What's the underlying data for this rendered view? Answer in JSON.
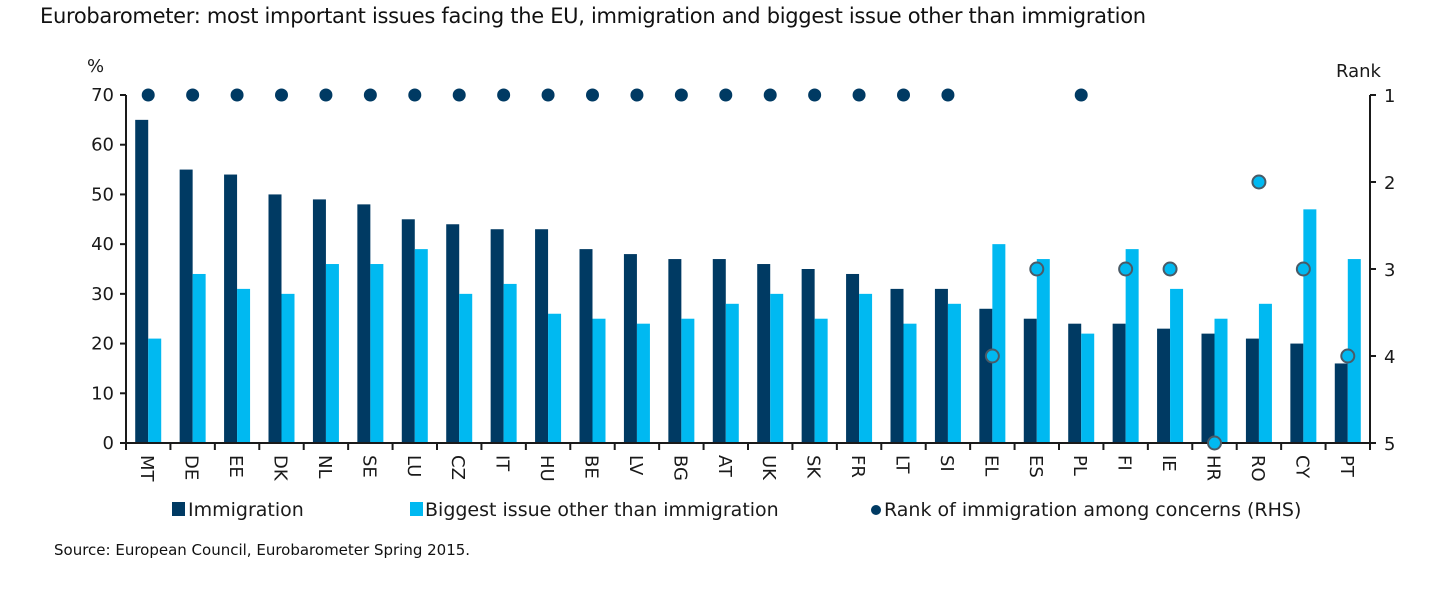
{
  "title": "Eurobarometer: most important issues facing the EU, immigration and biggest issue other than immigration",
  "source": "Source: European Council, Eurobarometer Spring 2015.",
  "colors": {
    "immigration": "#003a63",
    "other": "#00b9f1",
    "rank_marker_rank1": "#003a63",
    "rank_marker_other": "#00b9f1",
    "rank_marker_stroke": "#4a5a66",
    "axis": "#1a1a1a"
  },
  "chart_data": {
    "type": "bar",
    "title": "Eurobarometer: most important issues facing the EU, immigration and biggest issue other than immigration",
    "xlabel": "",
    "ylabel": "%",
    "y2label": "Rank",
    "ylim": [
      0,
      70
    ],
    "yticks": [
      0,
      10,
      20,
      30,
      40,
      50,
      60,
      70
    ],
    "y2lim": [
      5,
      1
    ],
    "y2ticks": [
      1,
      2,
      3,
      4,
      5
    ],
    "y2_inverted": true,
    "grid": false,
    "legend_position": "bottom",
    "categories": [
      "MT",
      "DE",
      "EE",
      "DK",
      "NL",
      "SE",
      "LU",
      "CZ",
      "IT",
      "HU",
      "BE",
      "LV",
      "BG",
      "AT",
      "UK",
      "SK",
      "FR",
      "LT",
      "SI",
      "EL",
      "ES",
      "PL",
      "FI",
      "IE",
      "HR",
      "RO",
      "CY",
      "PT"
    ],
    "series": [
      {
        "name": "Immigration",
        "type": "bar",
        "axis": "left",
        "values": [
          65,
          55,
          54,
          50,
          49,
          48,
          45,
          44,
          43,
          43,
          39,
          38,
          37,
          37,
          36,
          35,
          34,
          31,
          31,
          27,
          25,
          24,
          24,
          23,
          22,
          21,
          20,
          16
        ]
      },
      {
        "name": "Biggest issue other than immigration",
        "type": "bar",
        "axis": "left",
        "values": [
          21,
          34,
          31,
          30,
          36,
          36,
          39,
          30,
          32,
          26,
          25,
          24,
          25,
          28,
          30,
          25,
          30,
          24,
          28,
          40,
          37,
          22,
          39,
          31,
          25,
          28,
          47,
          37
        ]
      },
      {
        "name": "Rank of immigration among concerns (RHS)",
        "type": "scatter",
        "axis": "right",
        "values": [
          1,
          1,
          1,
          1,
          1,
          1,
          1,
          1,
          1,
          1,
          1,
          1,
          1,
          1,
          1,
          1,
          1,
          1,
          1,
          4,
          3,
          1,
          3,
          3,
          5,
          2,
          3,
          4
        ]
      }
    ]
  }
}
